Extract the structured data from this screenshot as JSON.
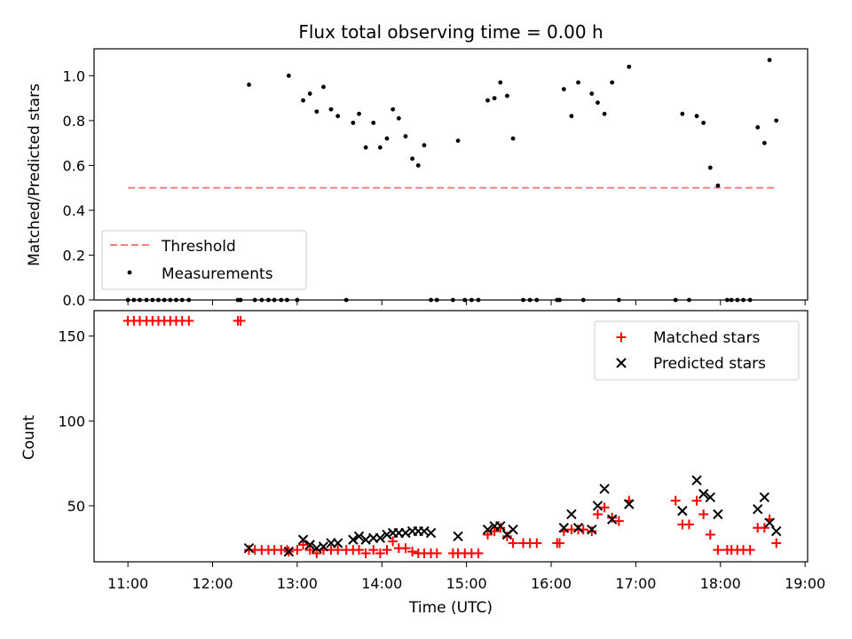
{
  "figure_title": "Flux total observing time = 0.00 h",
  "colors": {
    "threshold": "#f08080",
    "measurements": "#000000",
    "matched": "#ff0000",
    "predicted": "#000000"
  },
  "chart_data": [
    {
      "type": "scatter",
      "title": "Flux total observing time = 0.00 h",
      "ylabel": "Matched/Predicted stars",
      "xlabel": "",
      "xlim": [
        10.6,
        19.03
      ],
      "ylim": [
        0,
        1.12
      ],
      "yticks": [
        0,
        0.2,
        0.4,
        0.6,
        0.8,
        1.0
      ],
      "ytick_labels": [
        "0.0",
        "0.2",
        "0.4",
        "0.6",
        "0.8",
        "1.0"
      ],
      "grid": false,
      "legend": {
        "placement": "lower-left",
        "entries": [
          "Threshold",
          "Measurements"
        ]
      },
      "threshold": {
        "name": "Threshold",
        "style": "dashed",
        "x": [
          11.0,
          18.66
        ],
        "y": 0.5
      },
      "measurements": {
        "name": "Measurements",
        "x": [
          11.0,
          11.07,
          11.14,
          11.22,
          11.29,
          11.36,
          11.43,
          11.5,
          11.57,
          11.64,
          11.72,
          12.3,
          12.33,
          12.43,
          12.5,
          12.58,
          12.66,
          12.73,
          12.81,
          12.88,
          12.9,
          13.0,
          13.07,
          13.15,
          13.23,
          13.31,
          13.4,
          13.48,
          13.58,
          13.66,
          13.73,
          13.81,
          13.9,
          13.98,
          14.06,
          14.13,
          14.2,
          14.28,
          14.36,
          14.43,
          14.5,
          14.58,
          14.65,
          14.84,
          14.9,
          14.98,
          15.06,
          15.14,
          15.25,
          15.33,
          15.4,
          15.48,
          15.55,
          15.67,
          15.75,
          15.83,
          16.07,
          16.1,
          16.15,
          16.24,
          16.32,
          16.38,
          16.48,
          16.55,
          16.63,
          16.72,
          16.8,
          16.92,
          17.47,
          17.55,
          17.63,
          17.72,
          17.8,
          17.88,
          17.97,
          18.08,
          18.13,
          18.2,
          18.27,
          18.35,
          18.44,
          18.52,
          18.58,
          18.66
        ],
        "y": [
          0,
          0,
          0,
          0,
          0,
          0,
          0,
          0,
          0,
          0,
          0,
          0,
          0,
          0.96,
          0,
          0,
          0,
          0,
          0,
          0,
          1.0,
          0,
          0.89,
          0.92,
          0.84,
          0.95,
          0.85,
          0.82,
          0,
          0.79,
          0.83,
          0.68,
          0.79,
          0.68,
          0.72,
          0.85,
          0.81,
          0.73,
          0.63,
          0.6,
          0.69,
          0,
          0,
          0,
          0.71,
          0,
          0,
          0,
          0.89,
          0.9,
          0.97,
          0.91,
          0.72,
          0,
          0,
          0,
          0,
          0,
          0.94,
          0.82,
          0.97,
          0,
          0.92,
          0.88,
          0.83,
          0.97,
          0,
          1.04,
          0,
          0.83,
          0,
          0.82,
          0.79,
          0.59,
          0.51,
          0,
          0,
          0,
          0,
          0,
          0.77,
          0.7,
          1.07,
          0.8
        ]
      }
    },
    {
      "type": "scatter",
      "title": "",
      "ylabel": "Count",
      "xlabel": "Time (UTC)",
      "xlim": [
        10.6,
        19.03
      ],
      "ylim": [
        17,
        165
      ],
      "yticks": [
        50,
        100,
        150
      ],
      "ytick_labels": [
        "50",
        "100",
        "150"
      ],
      "xticks": [
        11,
        12,
        13,
        14,
        15,
        16,
        17,
        18,
        19
      ],
      "xtick_labels": [
        "11:00",
        "12:00",
        "13:00",
        "14:00",
        "15:00",
        "16:00",
        "17:00",
        "18:00",
        "19:00"
      ],
      "grid": false,
      "legend": {
        "placement": "top-right",
        "entries": [
          "Matched stars",
          "Predicted stars"
        ]
      },
      "series": [
        {
          "name": "Matched stars",
          "marker": "plus",
          "x": [
            11.0,
            11.07,
            11.14,
            11.22,
            11.29,
            11.36,
            11.43,
            11.5,
            11.57,
            11.64,
            11.72,
            12.3,
            12.33,
            12.43,
            12.5,
            12.58,
            12.66,
            12.73,
            12.81,
            12.88,
            12.9,
            13.0,
            13.07,
            13.15,
            13.23,
            13.31,
            13.4,
            13.48,
            13.58,
            13.66,
            13.73,
            13.81,
            13.9,
            13.98,
            14.06,
            14.13,
            14.2,
            14.28,
            14.36,
            14.43,
            14.5,
            14.58,
            14.65,
            14.84,
            14.9,
            14.98,
            15.06,
            15.14,
            15.25,
            15.33,
            15.4,
            15.48,
            15.55,
            15.67,
            15.75,
            15.83,
            16.07,
            16.1,
            16.15,
            16.24,
            16.32,
            16.38,
            16.48,
            16.55,
            16.63,
            16.72,
            16.8,
            16.92,
            17.47,
            17.55,
            17.63,
            17.72,
            17.8,
            17.88,
            17.97,
            18.08,
            18.13,
            18.2,
            18.27,
            18.35,
            18.44,
            18.52,
            18.58,
            18.66
          ],
          "y": [
            159,
            159,
            159,
            159,
            159,
            159,
            159,
            159,
            159,
            159,
            159,
            159,
            159,
            24,
            24,
            24,
            24,
            24,
            24,
            24,
            23,
            24,
            27,
            24,
            22,
            24,
            24,
            24,
            24,
            24,
            24,
            22,
            24,
            22,
            24,
            29,
            25,
            25,
            23,
            22,
            22,
            22,
            22,
            22,
            22,
            22,
            22,
            22,
            33,
            35,
            37,
            32,
            28,
            28,
            28,
            28,
            28,
            28,
            35,
            36,
            36,
            36,
            35,
            45,
            49,
            43,
            41,
            53,
            53,
            39,
            39,
            53,
            45,
            33,
            24,
            24,
            24,
            24,
            24,
            24,
            37,
            37,
            42,
            28
          ]
        },
        {
          "name": "Predicted stars",
          "marker": "x",
          "x": [
            12.43,
            12.9,
            13.07,
            13.15,
            13.23,
            13.31,
            13.4,
            13.48,
            13.66,
            13.73,
            13.81,
            13.9,
            13.98,
            14.06,
            14.13,
            14.2,
            14.28,
            14.36,
            14.43,
            14.5,
            14.58,
            14.9,
            15.25,
            15.33,
            15.4,
            15.48,
            15.55,
            16.15,
            16.24,
            16.32,
            16.48,
            16.55,
            16.63,
            16.72,
            16.92,
            17.55,
            17.72,
            17.8,
            17.88,
            17.97,
            18.44,
            18.52,
            18.58,
            18.66
          ],
          "y": [
            25,
            23,
            30,
            27,
            25,
            26,
            28,
            28,
            30,
            32,
            30,
            31,
            31,
            33,
            34,
            34,
            34,
            35,
            35,
            35,
            34,
            32,
            36,
            38,
            38,
            33,
            36,
            37,
            45,
            37,
            36,
            50,
            60,
            42,
            51,
            47,
            65,
            57,
            55,
            45,
            48,
            55,
            40,
            35
          ]
        }
      ]
    }
  ]
}
